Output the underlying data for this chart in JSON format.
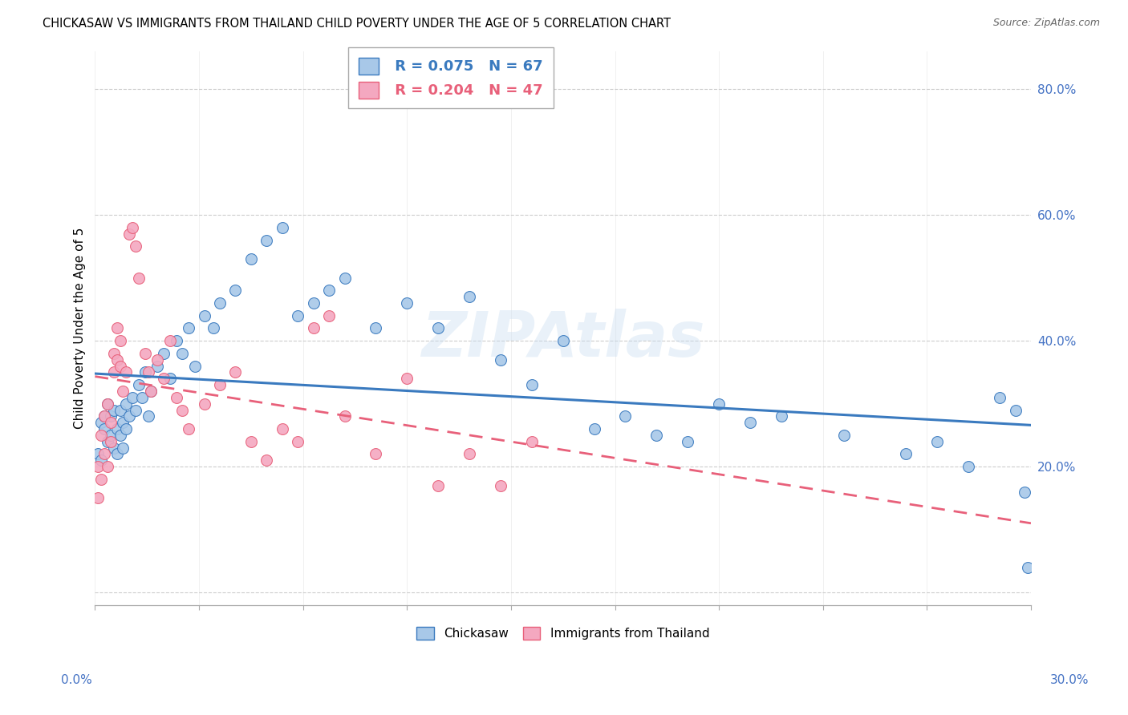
{
  "title": "CHICKASAW VS IMMIGRANTS FROM THAILAND CHILD POVERTY UNDER THE AGE OF 5 CORRELATION CHART",
  "source": "Source: ZipAtlas.com",
  "ylabel": "Child Poverty Under the Age of 5",
  "xlim": [
    0.0,
    0.3
  ],
  "ylim": [
    -0.02,
    0.86
  ],
  "yticks": [
    0.0,
    0.2,
    0.4,
    0.6,
    0.8
  ],
  "ytick_labels": [
    "",
    "20.0%",
    "40.0%",
    "60.0%",
    "80.0%"
  ],
  "legend_r1": "R = 0.075",
  "legend_n1": "N = 67",
  "legend_r2": "R = 0.204",
  "legend_n2": "N = 47",
  "color_blue": "#a8c8e8",
  "color_pink": "#f4a8c0",
  "line_color_blue": "#3a7abf",
  "line_color_pink": "#e8607a",
  "watermark": "ZIPAtlas",
  "chickasaw_x": [
    0.001,
    0.002,
    0.002,
    0.003,
    0.003,
    0.004,
    0.004,
    0.005,
    0.005,
    0.006,
    0.006,
    0.007,
    0.007,
    0.008,
    0.008,
    0.009,
    0.009,
    0.01,
    0.01,
    0.011,
    0.012,
    0.013,
    0.014,
    0.015,
    0.016,
    0.017,
    0.018,
    0.02,
    0.022,
    0.024,
    0.026,
    0.028,
    0.03,
    0.032,
    0.035,
    0.038,
    0.04,
    0.045,
    0.05,
    0.055,
    0.06,
    0.065,
    0.07,
    0.075,
    0.08,
    0.09,
    0.1,
    0.11,
    0.12,
    0.13,
    0.14,
    0.15,
    0.16,
    0.17,
    0.18,
    0.19,
    0.2,
    0.21,
    0.22,
    0.24,
    0.26,
    0.27,
    0.28,
    0.29,
    0.295,
    0.298,
    0.299
  ],
  "chickasaw_y": [
    0.22,
    0.27,
    0.21,
    0.26,
    0.28,
    0.24,
    0.3,
    0.25,
    0.28,
    0.23,
    0.29,
    0.22,
    0.26,
    0.25,
    0.29,
    0.23,
    0.27,
    0.26,
    0.3,
    0.28,
    0.31,
    0.29,
    0.33,
    0.31,
    0.35,
    0.28,
    0.32,
    0.36,
    0.38,
    0.34,
    0.4,
    0.38,
    0.42,
    0.36,
    0.44,
    0.42,
    0.46,
    0.48,
    0.53,
    0.56,
    0.58,
    0.44,
    0.46,
    0.48,
    0.5,
    0.42,
    0.46,
    0.42,
    0.47,
    0.37,
    0.33,
    0.4,
    0.26,
    0.28,
    0.25,
    0.24,
    0.3,
    0.27,
    0.28,
    0.25,
    0.22,
    0.24,
    0.2,
    0.31,
    0.29,
    0.16,
    0.04
  ],
  "thailand_x": [
    0.001,
    0.001,
    0.002,
    0.002,
    0.003,
    0.003,
    0.004,
    0.004,
    0.005,
    0.005,
    0.006,
    0.006,
    0.007,
    0.007,
    0.008,
    0.008,
    0.009,
    0.01,
    0.011,
    0.012,
    0.013,
    0.014,
    0.016,
    0.017,
    0.018,
    0.02,
    0.022,
    0.024,
    0.026,
    0.028,
    0.03,
    0.035,
    0.04,
    0.045,
    0.05,
    0.055,
    0.06,
    0.065,
    0.07,
    0.075,
    0.08,
    0.09,
    0.1,
    0.11,
    0.12,
    0.13,
    0.14
  ],
  "thailand_y": [
    0.2,
    0.15,
    0.25,
    0.18,
    0.22,
    0.28,
    0.2,
    0.3,
    0.24,
    0.27,
    0.35,
    0.38,
    0.42,
    0.37,
    0.36,
    0.4,
    0.32,
    0.35,
    0.57,
    0.58,
    0.55,
    0.5,
    0.38,
    0.35,
    0.32,
    0.37,
    0.34,
    0.4,
    0.31,
    0.29,
    0.26,
    0.3,
    0.33,
    0.35,
    0.24,
    0.21,
    0.26,
    0.24,
    0.42,
    0.44,
    0.28,
    0.22,
    0.34,
    0.17,
    0.22,
    0.17,
    0.24
  ]
}
